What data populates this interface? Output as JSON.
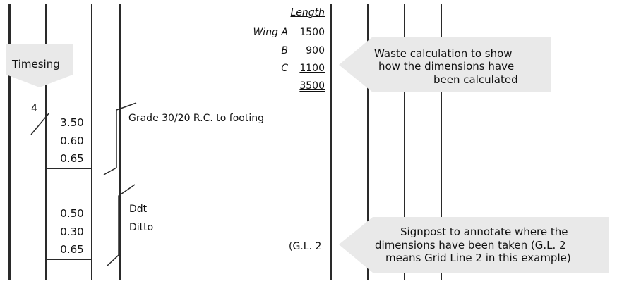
{
  "colors": {
    "rule": "#2a2a2a",
    "callout_fill": "#e9e9e9",
    "text": "#111111"
  },
  "timesing_label": "Timesing",
  "timesing_value": "4",
  "group_1": {
    "dimensions": [
      "3.50",
      "0.60",
      "0.65"
    ],
    "description": "Grade 30/20 R.C. to footing"
  },
  "group_2": {
    "dimensions": [
      "0.50",
      "0.30",
      "0.65"
    ],
    "description_heading": "Ddt",
    "description": "Ditto"
  },
  "waste_calc": {
    "header": "Length",
    "rows": [
      {
        "label": "Wing A",
        "value": "1500"
      },
      {
        "label": "B",
        "value": "900"
      },
      {
        "label": "C",
        "value": "1100"
      }
    ],
    "total": "3500"
  },
  "grid_ref": "(G.L. 2",
  "callouts": {
    "waste": [
      "Waste calculation to show",
      "how the dimensions have",
      "been calculated"
    ],
    "signpost": [
      "Signpost to annotate where the",
      "dimensions have been taken (G.L. 2",
      "means Grid Line 2 in this example)"
    ]
  }
}
